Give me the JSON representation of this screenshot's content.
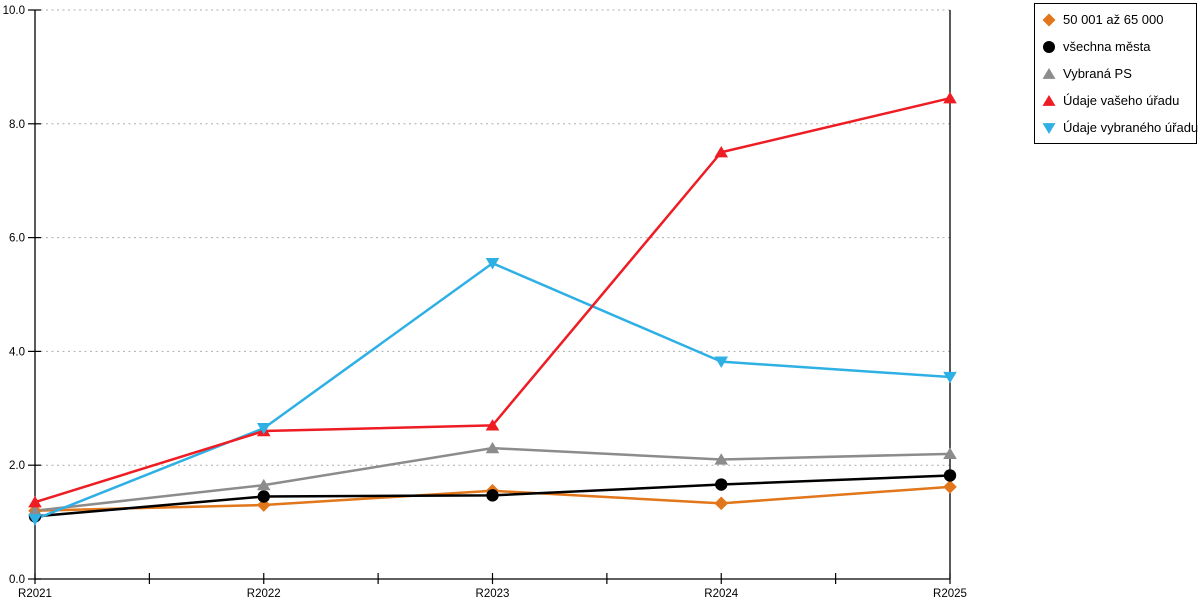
{
  "chart_data": {
    "type": "line",
    "title": "",
    "xlabel": "",
    "ylabel": "",
    "categories": [
      "R2021",
      "R2022",
      "R2023",
      "R2024",
      "R2025"
    ],
    "series": [
      {
        "name": "50 001 až 65 000",
        "marker": "diamond",
        "color": "#E1761B",
        "values": [
          1.2,
          1.3,
          1.55,
          1.33,
          1.62
        ]
      },
      {
        "name": "všechna města",
        "marker": "circle",
        "color": "#000000",
        "values": [
          1.1,
          1.45,
          1.47,
          1.66,
          1.82
        ]
      },
      {
        "name": "Vybraná PS",
        "marker": "triangle-up",
        "color": "#8C8C8C",
        "values": [
          1.2,
          1.65,
          2.3,
          2.1,
          2.2
        ]
      },
      {
        "name": "Údaje vašeho úřadu",
        "marker": "triangle-up",
        "color": "#EE1C23",
        "values": [
          1.35,
          2.6,
          2.7,
          7.5,
          8.45
        ]
      },
      {
        "name": "Údaje vybraného úřadu",
        "marker": "triangle-down",
        "color": "#2FB0E5",
        "values": [
          1.05,
          2.65,
          5.55,
          3.82,
          3.55
        ]
      }
    ],
    "ylim": [
      0,
      10
    ],
    "yticks": [
      0,
      2,
      4,
      6,
      8,
      10
    ],
    "ytick_labels": [
      "0.0",
      "2.0",
      "4.0",
      "6.0",
      "8.0",
      "10.0"
    ],
    "grid": "horizontal-dashed",
    "minor_x_ticks": true,
    "legend_position": "top-right",
    "line_order": [
      0,
      1,
      2,
      4,
      3
    ]
  },
  "colors": {
    "background": "#ffffff",
    "grid": "#ADADAD",
    "axis": "#000000",
    "legend_border": "#000000"
  }
}
